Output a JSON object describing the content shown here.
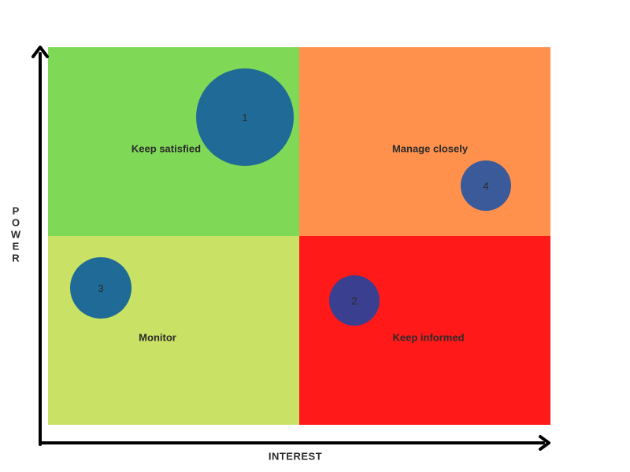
{
  "axes": {
    "x_label": "INTEREST",
    "y_label": "POWER"
  },
  "colors": {
    "keep_satisfied": "#7FD957",
    "manage_closely": "#FF914D",
    "monitor": "#C9E265",
    "keep_informed": "#FF1919",
    "axis": "#000000"
  },
  "quadrants": {
    "top_left": "Keep satisfied",
    "top_right": "Manage closely",
    "bottom_left": "Monitor",
    "bottom_right": "Keep informed"
  },
  "stakeholders": [
    {
      "label": "1",
      "color": "#1F6A96"
    },
    {
      "label": "2",
      "color": "#3B3F8F"
    },
    {
      "label": "3",
      "color": "#1F6A96"
    },
    {
      "label": "4",
      "color": "#3A5A9A"
    }
  ]
}
